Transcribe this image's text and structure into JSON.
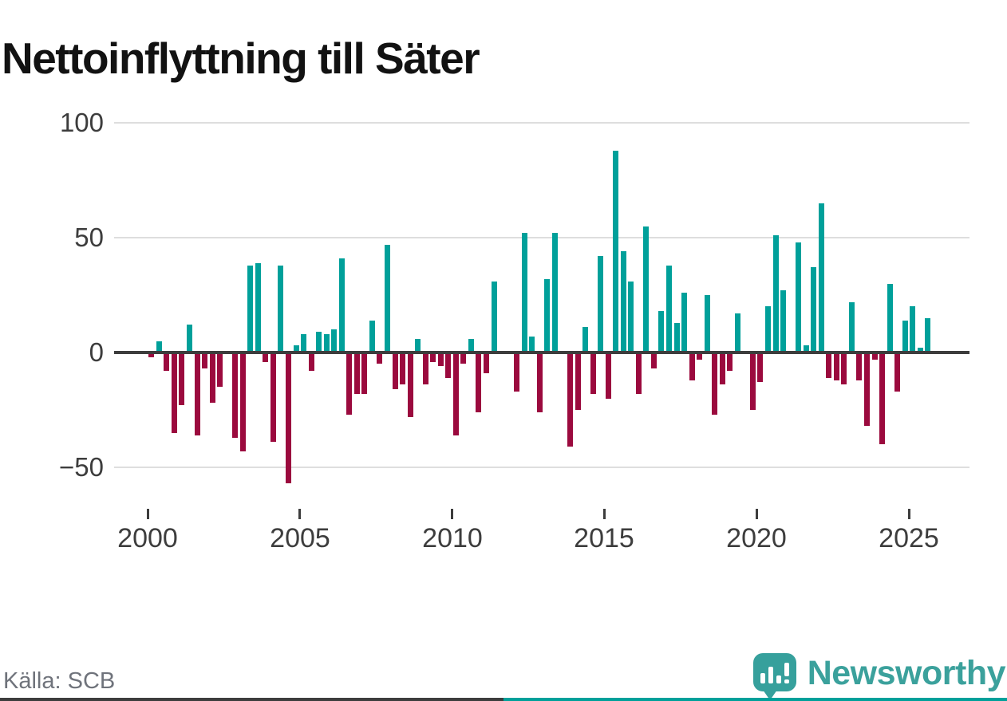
{
  "title": "Nettoinflyttning till Säter",
  "source": "Källa: SCB",
  "branding": {
    "name": "Newsworthy",
    "logo_icon": "speech-bubble-bar-chart-icon",
    "wordmark_color": "#3ba19c",
    "bubble_color": "#36a09c"
  },
  "chart_data": {
    "type": "bar",
    "title": "Nettoinflyttning till Säter",
    "period": "quarterly",
    "start_year": 2000,
    "start_quarter": 1,
    "x_tick_years": [
      2000,
      2005,
      2010,
      2015,
      2020,
      2025
    ],
    "y_ticks": [
      100,
      50,
      0,
      -50
    ],
    "ylim": [
      -62,
      105
    ],
    "grid": true,
    "legend": "none",
    "colors": {
      "positive": "#00a09a",
      "negative": "#9b0a3e"
    },
    "axis_color": "#3d3d3d",
    "grid_color": "#dedede",
    "values": [
      -2,
      5,
      -8,
      -35,
      -23,
      12,
      -36,
      -7,
      -22,
      -15,
      0,
      -37,
      -43,
      38,
      39,
      -4,
      -39,
      38,
      -57,
      3,
      8,
      -8,
      9,
      8,
      10,
      41,
      -27,
      -18,
      -18,
      14,
      -5,
      47,
      -16,
      -14,
      -28,
      6,
      -14,
      -4,
      -6,
      -11,
      -36,
      -5,
      6,
      -26,
      -9,
      31,
      0,
      0,
      -17,
      52,
      7,
      -26,
      32,
      52,
      0,
      -41,
      -25,
      11,
      -18,
      42,
      -20,
      88,
      44,
      31,
      -18,
      55,
      -7,
      18,
      38,
      13,
      26,
      -12,
      -3,
      25,
      -27,
      -14,
      -8,
      17,
      0,
      -25,
      -13,
      20,
      51,
      27,
      0,
      48,
      3,
      37,
      65,
      -11,
      -12,
      -14,
      22,
      -12,
      -32,
      -3,
      -40,
      30,
      -17,
      14,
      20,
      2,
      15
    ]
  }
}
